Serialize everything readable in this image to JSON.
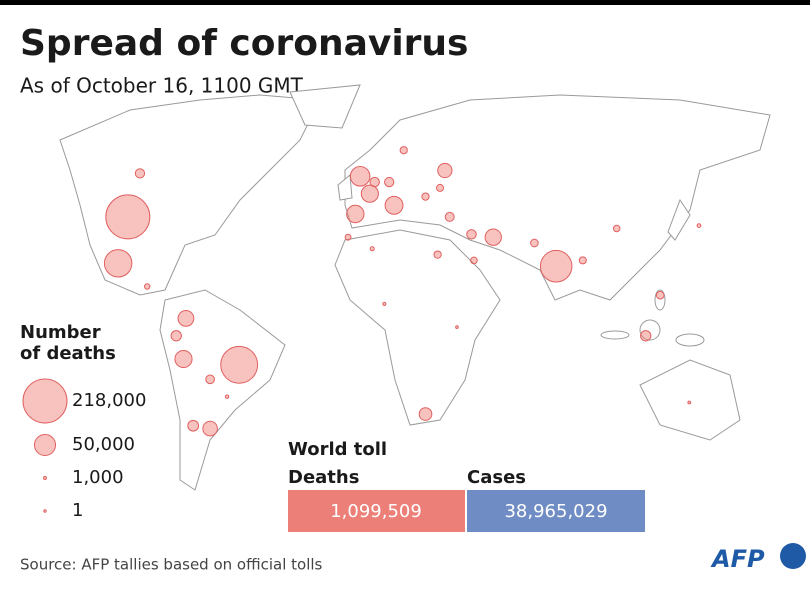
{
  "header": {
    "title": "Spread of coronavirus",
    "subtitle": "As of October 16, 1100 GMT"
  },
  "legend": {
    "title_lines": [
      "Number",
      "of deaths"
    ],
    "entries": [
      {
        "value": 218000,
        "label": "218,000"
      },
      {
        "value": 50000,
        "label": "50,000"
      },
      {
        "value": 1000,
        "label": "1,000"
      },
      1
    ]
  },
  "bubbles": [
    {
      "lon": -98,
      "lat": 39,
      "value": 218000
    },
    {
      "lon": -52,
      "lat": -12,
      "value": 153000
    },
    {
      "lon": 79,
      "lat": 22,
      "value": 112000
    },
    {
      "lon": -102,
      "lat": 23,
      "value": 85000
    },
    {
      "lon": -2,
      "lat": 53,
      "value": 43000
    },
    {
      "lon": 12,
      "lat": 43,
      "value": 36000
    },
    {
      "lon": -4,
      "lat": 40,
      "value": 34000
    },
    {
      "lon": 2,
      "lat": 47,
      "value": 33000
    },
    {
      "lon": -75,
      "lat": -10,
      "value": 33000
    },
    {
      "lon": 53,
      "lat": 32,
      "value": 30000
    },
    {
      "lon": -74,
      "lat": 4,
      "value": 28000
    },
    {
      "lon": -64,
      "lat": -34,
      "value": 24000
    },
    {
      "lon": 33,
      "lat": 55,
      "value": 23000
    },
    {
      "lon": 25,
      "lat": -29,
      "value": 18000
    },
    {
      "lon": -71,
      "lat": -33,
      "value": 13000
    },
    {
      "lon": -78,
      "lat": -2,
      "value": 12000
    },
    {
      "lon": 116,
      "lat": -2,
      "value": 12000
    },
    {
      "lon": 4,
      "lat": 51,
      "value": 10000
    },
    {
      "lon": 10,
      "lat": 51,
      "value": 9800
    },
    {
      "lon": -93,
      "lat": 54,
      "value": 9700
    },
    {
      "lon": 44,
      "lat": 33,
      "value": 10000
    },
    {
      "lon": 35,
      "lat": 39,
      "value": 9000
    },
    {
      "lon": -64,
      "lat": -17,
      "value": 8400
    },
    {
      "lon": 122,
      "lat": 12,
      "value": 6500
    },
    {
      "lon": 30,
      "lat": 26,
      "value": 6000
    },
    {
      "lon": 70,
      "lat": 30,
      "value": 6600
    },
    {
      "lon": 45,
      "lat": 24,
      "value": 5000
    },
    {
      "lon": 90,
      "lat": 24,
      "value": 5600
    },
    {
      "lon": 31,
      "lat": 49,
      "value": 5500
    },
    {
      "lon": 25,
      "lat": 46,
      "value": 5900
    },
    {
      "lon": 16,
      "lat": 62,
      "value": 5900
    },
    {
      "lon": 104,
      "lat": 35,
      "value": 4700
    },
    {
      "lon": -90,
      "lat": 15,
      "value": 3300
    },
    {
      "lon": -7,
      "lat": 32,
      "value": 3800
    },
    {
      "lon": 134,
      "lat": -25,
      "value": 900
    },
    {
      "lon": 138,
      "lat": 36,
      "value": 1600
    },
    {
      "lon": 8,
      "lat": 9,
      "value": 1100
    },
    {
      "lon": 38,
      "lat": 1,
      "value": 800
    },
    {
      "lon": 3,
      "lat": 28,
      "value": 1800
    },
    {
      "lon": -57,
      "lat": -23,
      "value": 1300
    }
  ],
  "world_toll": {
    "title": "World toll",
    "deaths_label": "Deaths",
    "deaths": "1,099,509",
    "cases_label": "Cases",
    "cases": "38,965,029"
  },
  "footer": {
    "source": "Source: AFP tallies based on official tolls",
    "logo": "AFP"
  }
}
